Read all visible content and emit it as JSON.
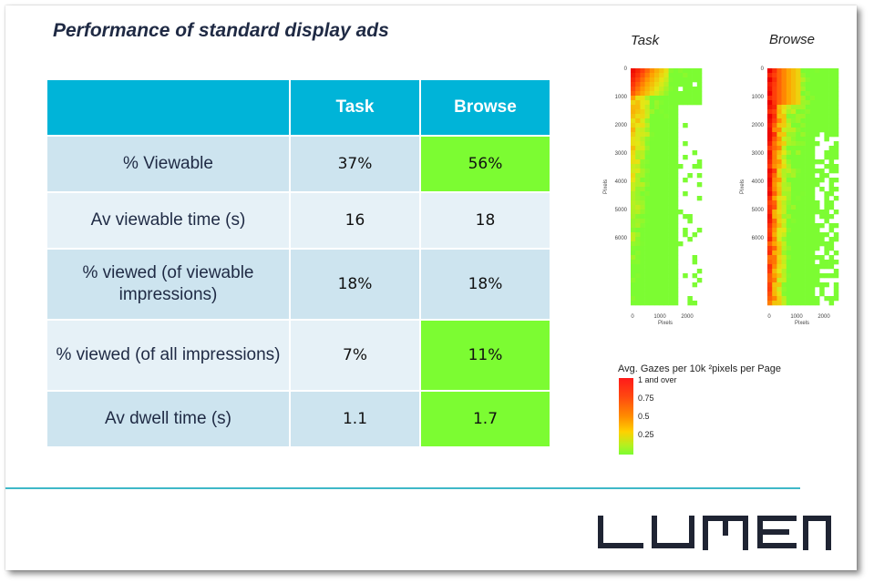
{
  "title": "Performance of standard display ads",
  "table": {
    "headers": [
      "",
      "Task",
      "Browse"
    ],
    "rows": [
      {
        "label": "% Viewable",
        "task": "37%",
        "browse": "56%"
      },
      {
        "label": "Av viewable time (s)",
        "task": "16",
        "browse": "18"
      },
      {
        "label": "% viewed (of viewable impressions)",
        "task": "18%",
        "browse": "18%"
      },
      {
        "label": "% viewed (of all impressions)",
        "task": "7%",
        "browse": "11%"
      },
      {
        "label": "Av dwell time (s)",
        "task": "1.1",
        "browse": "1.7"
      }
    ]
  },
  "heatmaps": {
    "task_label": "Task",
    "browse_label": "Browse",
    "y_ticks": [
      "0",
      "1000",
      "2000",
      "3000",
      "4000",
      "5000",
      "6000"
    ],
    "x_ticks": [
      "0",
      "1000",
      "2000"
    ],
    "y_axis_label": "Pixels",
    "x_axis_label": "Pixels"
  },
  "legend": {
    "title": "Avg. Gazes per 10k ²pixels per Page",
    "ticks": [
      "1 and over",
      "0.75",
      "0.5",
      "0.25"
    ]
  },
  "colors": {
    "header": "#00b4d8",
    "highlight_green": "#7cfc32",
    "row_dark": "#cde4ef",
    "row_light": "#e6f1f7",
    "divider": "#3fb8c8"
  },
  "logo_icon": "lumen-logo"
}
